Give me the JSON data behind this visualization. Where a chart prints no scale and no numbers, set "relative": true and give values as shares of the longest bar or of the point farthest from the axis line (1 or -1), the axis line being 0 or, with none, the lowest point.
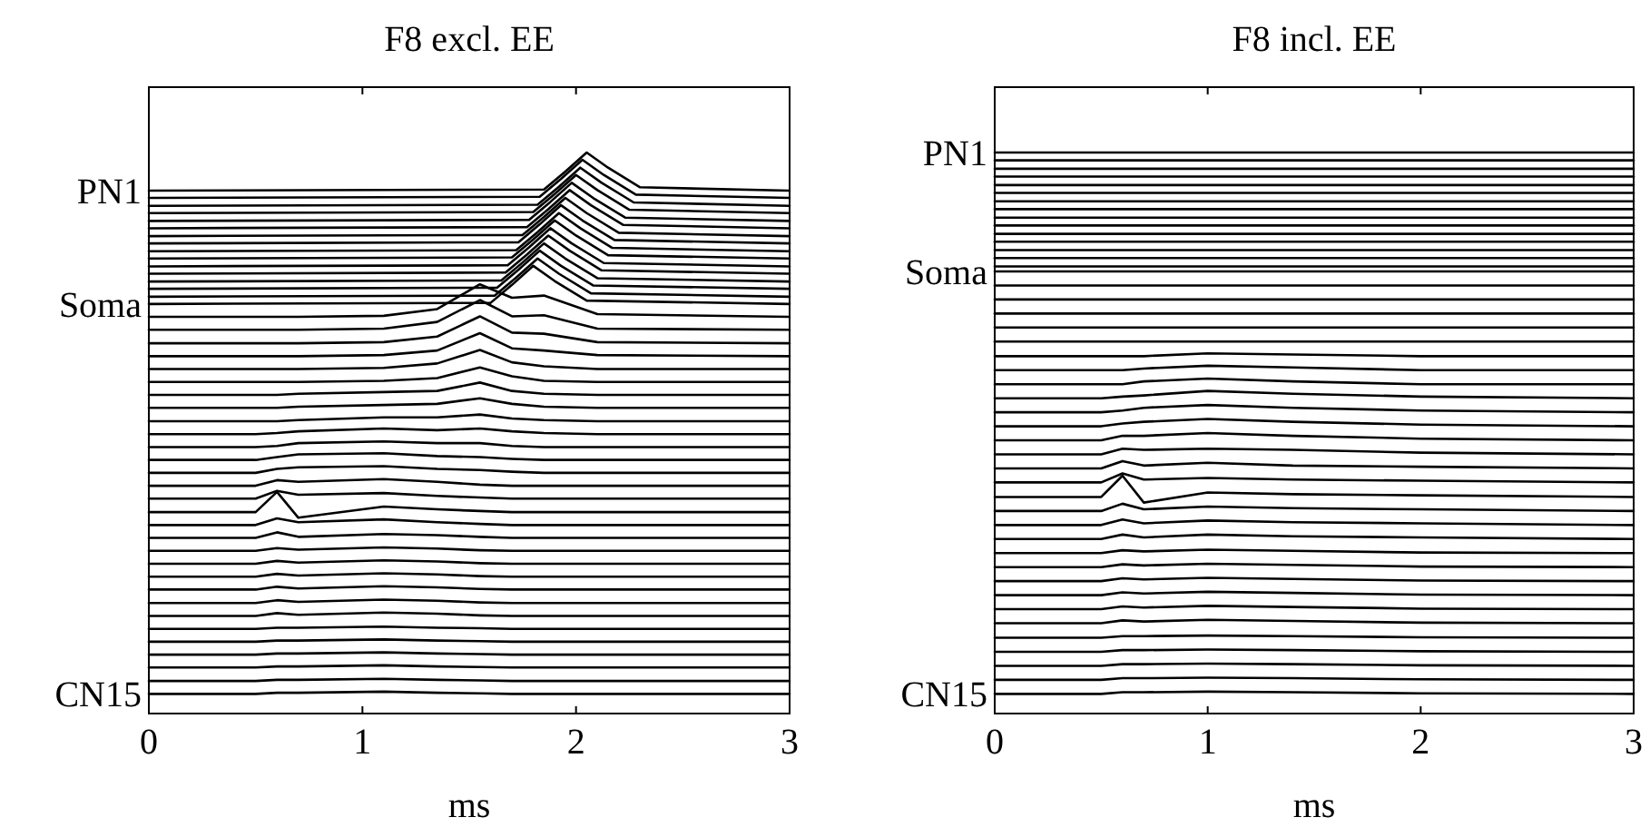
{
  "chart_data": [
    {
      "type": "line",
      "title": "F8 excl. EE",
      "xlabel": "ms",
      "xlim": [
        0,
        3
      ],
      "xticks": [
        0,
        1,
        2,
        3
      ],
      "relative": true,
      "series": [
        {
          "name": "PN1",
          "color": "#000000",
          "x": [
            0,
            1.85,
            1.95,
            2.05,
            2.15,
            2.3,
            3
          ],
          "values": [
            0.932,
            0.934,
            0.966,
            1,
            0.973,
            0.938,
            0.932
          ]
        },
        {
          "color": "#000000",
          "x": [
            0,
            1.83,
            1.93,
            2.03,
            2.13,
            2.28,
            3
          ],
          "values": [
            0.919,
            0.921,
            0.953,
            0.987,
            0.96,
            0.925,
            0.919
          ]
        },
        {
          "color": "#000000",
          "x": [
            0,
            1.82,
            1.92,
            2.02,
            2.12,
            2.27,
            3
          ],
          "values": [
            0.905,
            0.907,
            0.939,
            0.973,
            0.946,
            0.911,
            0.905
          ]
        },
        {
          "color": "#000000",
          "x": [
            0,
            1.8,
            1.9,
            2,
            2.1,
            2.25,
            3
          ],
          "values": [
            0.892,
            0.894,
            0.926,
            0.96,
            0.933,
            0.898,
            0.892
          ]
        },
        {
          "color": "#000000",
          "x": [
            0,
            1.78,
            1.88,
            1.98,
            2.08,
            2.23,
            3
          ],
          "values": [
            0.878,
            0.88,
            0.912,
            0.946,
            0.919,
            0.884,
            0.878
          ]
        },
        {
          "color": "#000000",
          "x": [
            0,
            1.77,
            1.87,
            1.97,
            2.07,
            2.22,
            3
          ],
          "values": [
            0.865,
            0.867,
            0.899,
            0.933,
            0.906,
            0.871,
            0.865
          ]
        },
        {
          "color": "#000000",
          "x": [
            0,
            1.75,
            1.85,
            1.95,
            2.05,
            2.2,
            3
          ],
          "values": [
            0.851,
            0.853,
            0.885,
            0.919,
            0.892,
            0.857,
            0.851
          ]
        },
        {
          "color": "#000000",
          "x": [
            0,
            1.73,
            1.83,
            1.93,
            2.03,
            2.18,
            3
          ],
          "values": [
            0.838,
            0.84,
            0.872,
            0.906,
            0.879,
            0.844,
            0.838
          ]
        },
        {
          "color": "#000000",
          "x": [
            0,
            1.72,
            1.82,
            1.92,
            2.02,
            2.17,
            3
          ],
          "values": [
            0.824,
            0.826,
            0.858,
            0.892,
            0.865,
            0.83,
            0.824
          ]
        },
        {
          "color": "#000000",
          "x": [
            0,
            1.7,
            1.8,
            1.9,
            2,
            2.15,
            3
          ],
          "values": [
            0.811,
            0.813,
            0.845,
            0.879,
            0.852,
            0.817,
            0.811
          ]
        },
        {
          "color": "#000000",
          "x": [
            0,
            1.68,
            1.78,
            1.88,
            1.98,
            2.13,
            3
          ],
          "values": [
            0.797,
            0.799,
            0.831,
            0.865,
            0.838,
            0.803,
            0.797
          ]
        },
        {
          "color": "#000000",
          "x": [
            0,
            1.67,
            1.77,
            1.87,
            1.97,
            2.12,
            3
          ],
          "values": [
            0.784,
            0.786,
            0.818,
            0.852,
            0.825,
            0.79,
            0.784
          ]
        },
        {
          "color": "#000000",
          "x": [
            0,
            1.65,
            1.75,
            1.85,
            1.95,
            2.1,
            3
          ],
          "values": [
            0.77,
            0.772,
            0.804,
            0.838,
            0.811,
            0.776,
            0.77
          ]
        },
        {
          "color": "#000000",
          "x": [
            0,
            1.63,
            1.73,
            1.83,
            1.93,
            2.08,
            3
          ],
          "values": [
            0.757,
            0.759,
            0.791,
            0.825,
            0.798,
            0.763,
            0.757
          ]
        },
        {
          "color": "#000000",
          "x": [
            0,
            1.62,
            1.72,
            1.82,
            1.92,
            2.07,
            3
          ],
          "values": [
            0.743,
            0.745,
            0.777,
            0.811,
            0.784,
            0.749,
            0.743
          ]
        },
        {
          "name": "Soma",
          "color": "#000000",
          "x": [
            0,
            1.6,
            1.7,
            1.8,
            1.9,
            2.05,
            3
          ],
          "values": [
            0.73,
            0.732,
            0.764,
            0.798,
            0.771,
            0.736,
            0.73
          ]
        },
        {
          "color": "#000000",
          "x": [
            0,
            0.5,
            0.6,
            0.7,
            1.1,
            1.35,
            1.55,
            1.7,
            1.85,
            2.1,
            3
          ],
          "values": [
            0.707,
            0.707,
            0.707,
            0.707,
            0.709,
            0.721,
            0.765,
            0.741,
            0.745,
            0.712,
            0.707
          ]
        },
        {
          "color": "#000000",
          "x": [
            0,
            0.5,
            0.6,
            0.7,
            1.1,
            1.35,
            1.55,
            1.7,
            1.85,
            2.1,
            3
          ],
          "values": [
            0.684,
            0.684,
            0.684,
            0.684,
            0.686,
            0.698,
            0.737,
            0.708,
            0.71,
            0.686,
            0.684
          ]
        },
        {
          "color": "#000000",
          "x": [
            0,
            0.5,
            0.6,
            0.7,
            1.1,
            1.35,
            1.55,
            1.7,
            1.85,
            2.1,
            3
          ],
          "values": [
            0.66,
            0.66,
            0.66,
            0.66,
            0.662,
            0.672,
            0.708,
            0.679,
            0.677,
            0.662,
            0.66
          ]
        },
        {
          "color": "#000000",
          "x": [
            0,
            0.5,
            0.6,
            0.7,
            1.1,
            1.35,
            1.55,
            1.7,
            1.85,
            2.1,
            3
          ],
          "values": [
            0.637,
            0.637,
            0.637,
            0.637,
            0.639,
            0.647,
            0.678,
            0.651,
            0.647,
            0.639,
            0.637
          ]
        },
        {
          "color": "#000000",
          "x": [
            0,
            0.5,
            0.6,
            0.7,
            1.1,
            1.35,
            1.55,
            1.7,
            1.85,
            2.1,
            3
          ],
          "values": [
            0.614,
            0.614,
            0.614,
            0.614,
            0.616,
            0.624,
            0.648,
            0.626,
            0.619,
            0.614,
            0.614
          ]
        },
        {
          "color": "#000000",
          "x": [
            0,
            0.5,
            0.6,
            0.7,
            1.1,
            1.35,
            1.55,
            1.7,
            1.85,
            2.1,
            3
          ],
          "values": [
            0.591,
            0.591,
            0.591,
            0.591,
            0.593,
            0.598,
            0.617,
            0.601,
            0.593,
            0.591,
            0.591
          ]
        },
        {
          "color": "#000000",
          "x": [
            0,
            0.5,
            0.6,
            0.7,
            1.1,
            1.35,
            1.55,
            1.7,
            1.85,
            2.1,
            3
          ],
          "values": [
            0.568,
            0.568,
            0.568,
            0.57,
            0.573,
            0.575,
            0.59,
            0.575,
            0.57,
            0.568,
            0.568
          ]
        },
        {
          "color": "#000000",
          "x": [
            0,
            0.5,
            0.6,
            0.7,
            1.1,
            1.35,
            1.55,
            1.7,
            1.85,
            2.1,
            3
          ],
          "values": [
            0.545,
            0.545,
            0.545,
            0.547,
            0.55,
            0.552,
            0.562,
            0.552,
            0.547,
            0.545,
            0.545
          ]
        },
        {
          "color": "#000000",
          "x": [
            0,
            0.5,
            0.6,
            0.7,
            1.1,
            1.35,
            1.55,
            1.7,
            1.85,
            2.1,
            3
          ],
          "values": [
            0.521,
            0.521,
            0.521,
            0.523,
            0.528,
            0.528,
            0.533,
            0.526,
            0.523,
            0.521,
            0.521
          ]
        },
        {
          "color": "#000000",
          "x": [
            0,
            0.5,
            0.6,
            0.7,
            1.1,
            1.35,
            1.55,
            1.7,
            1.85,
            2.1,
            3
          ],
          "values": [
            0.498,
            0.498,
            0.5,
            0.503,
            0.508,
            0.505,
            0.508,
            0.503,
            0.5,
            0.498,
            0.498
          ]
        },
        {
          "color": "#000000",
          "x": [
            0,
            0.5,
            0.6,
            0.7,
            1.1,
            1.35,
            1.55,
            1.7,
            1.85,
            2.1,
            3
          ],
          "values": [
            0.475,
            0.475,
            0.477,
            0.482,
            0.485,
            0.482,
            0.482,
            0.477,
            0.475,
            0.475,
            0.475
          ]
        },
        {
          "color": "#000000",
          "x": [
            0,
            0.5,
            0.6,
            0.7,
            1.1,
            1.35,
            1.55,
            1.7,
            1.85,
            2.1,
            3
          ],
          "values": [
            0.452,
            0.452,
            0.457,
            0.462,
            0.464,
            0.459,
            0.457,
            0.454,
            0.452,
            0.452,
            0.452
          ]
        },
        {
          "color": "#000000",
          "x": [
            0,
            0.5,
            0.6,
            0.7,
            1.1,
            1.35,
            1.55,
            1.7,
            1.85,
            2.1,
            3
          ],
          "values": [
            0.429,
            0.429,
            0.436,
            0.439,
            0.441,
            0.436,
            0.434,
            0.431,
            0.429,
            0.429,
            0.429
          ]
        },
        {
          "color": "#000000",
          "x": [
            0,
            0.5,
            0.6,
            0.7,
            1.1,
            1.35,
            1.55,
            1.7,
            1.85,
            2.1,
            3
          ],
          "values": [
            0.406,
            0.406,
            0.416,
            0.413,
            0.418,
            0.413,
            0.408,
            0.406,
            0.406,
            0.406,
            0.406
          ]
        },
        {
          "color": "#000000",
          "x": [
            0,
            0.5,
            0.6,
            0.7,
            1.1,
            1.35,
            1.55,
            1.7,
            1.85,
            2.1,
            3
          ],
          "values": [
            0.383,
            0.383,
            0.397,
            0.39,
            0.393,
            0.388,
            0.385,
            0.383,
            0.383,
            0.383,
            0.383
          ]
        },
        {
          "color": "#000000",
          "x": [
            0,
            0.5,
            0.6,
            0.7,
            1.1,
            1.35,
            1.55,
            1.7,
            1.85,
            2.1,
            3
          ],
          "values": [
            0.359,
            0.359,
            0.395,
            0.349,
            0.369,
            0.364,
            0.361,
            0.359,
            0.359,
            0.359,
            0.359
          ]
        },
        {
          "color": "#000000",
          "x": [
            0,
            0.5,
            0.6,
            0.7,
            1.1,
            1.35,
            1.55,
            1.7,
            1.85,
            2.1,
            3
          ],
          "values": [
            0.336,
            0.336,
            0.348,
            0.341,
            0.346,
            0.341,
            0.338,
            0.336,
            0.336,
            0.336,
            0.336
          ]
        },
        {
          "color": "#000000",
          "x": [
            0,
            0.5,
            0.6,
            0.7,
            1.1,
            1.35,
            1.55,
            1.7,
            1.85,
            2.1,
            3
          ],
          "values": [
            0.313,
            0.313,
            0.323,
            0.315,
            0.32,
            0.318,
            0.315,
            0.313,
            0.313,
            0.313,
            0.313
          ]
        },
        {
          "color": "#000000",
          "x": [
            0,
            0.5,
            0.6,
            0.7,
            1.1,
            1.35,
            1.55,
            1.7,
            1.85,
            2.1,
            3
          ],
          "values": [
            0.29,
            0.29,
            0.295,
            0.292,
            0.296,
            0.294,
            0.291,
            0.29,
            0.29,
            0.29,
            0.29
          ]
        },
        {
          "color": "#000000",
          "x": [
            0,
            0.5,
            0.6,
            0.7,
            1.1,
            1.35,
            1.55,
            1.7,
            1.85,
            2.1,
            3
          ],
          "values": [
            0.267,
            0.267,
            0.272,
            0.269,
            0.273,
            0.271,
            0.268,
            0.267,
            0.267,
            0.267,
            0.267
          ]
        },
        {
          "color": "#000000",
          "x": [
            0,
            0.5,
            0.6,
            0.7,
            1.1,
            1.35,
            1.55,
            1.7,
            1.85,
            2.1,
            3
          ],
          "values": [
            0.244,
            0.244,
            0.249,
            0.246,
            0.25,
            0.248,
            0.245,
            0.244,
            0.244,
            0.244,
            0.244
          ]
        },
        {
          "color": "#000000",
          "x": [
            0,
            0.5,
            0.6,
            0.7,
            1.1,
            1.35,
            1.55,
            1.7,
            1.85,
            2.1,
            3
          ],
          "values": [
            0.221,
            0.221,
            0.226,
            0.223,
            0.227,
            0.225,
            0.222,
            0.221,
            0.221,
            0.221,
            0.221
          ]
        },
        {
          "color": "#000000",
          "x": [
            0,
            0.5,
            0.6,
            0.7,
            1.1,
            1.35,
            1.55,
            1.7,
            1.85,
            2.1,
            3
          ],
          "values": [
            0.197,
            0.197,
            0.202,
            0.199,
            0.203,
            0.201,
            0.198,
            0.197,
            0.197,
            0.197,
            0.197
          ]
        },
        {
          "color": "#000000",
          "x": [
            0,
            0.5,
            0.6,
            0.7,
            1.1,
            1.35,
            1.55,
            1.7,
            1.85,
            2.1,
            3
          ],
          "values": [
            0.174,
            0.174,
            0.179,
            0.176,
            0.18,
            0.178,
            0.175,
            0.174,
            0.174,
            0.174,
            0.174
          ]
        },
        {
          "color": "#000000",
          "x": [
            0,
            0.5,
            0.6,
            0.7,
            1.1,
            1.35,
            1.55,
            1.7,
            1.85,
            2.1,
            3
          ],
          "values": [
            0.151,
            0.151,
            0.153,
            0.153,
            0.155,
            0.153,
            0.152,
            0.151,
            0.151,
            0.151,
            0.151
          ]
        },
        {
          "color": "#000000",
          "x": [
            0,
            0.5,
            0.6,
            0.7,
            1.1,
            1.35,
            1.55,
            1.7,
            1.85,
            2.1,
            3
          ],
          "values": [
            0.128,
            0.128,
            0.13,
            0.13,
            0.132,
            0.13,
            0.129,
            0.128,
            0.128,
            0.128,
            0.128
          ]
        },
        {
          "color": "#000000",
          "x": [
            0,
            0.5,
            0.6,
            0.7,
            1.1,
            1.35,
            1.55,
            1.7,
            1.85,
            2.1,
            3
          ],
          "values": [
            0.105,
            0.105,
            0.107,
            0.107,
            0.109,
            0.107,
            0.106,
            0.105,
            0.105,
            0.105,
            0.105
          ]
        },
        {
          "color": "#000000",
          "x": [
            0,
            0.5,
            0.6,
            0.7,
            1.1,
            1.35,
            1.55,
            1.7,
            1.85,
            2.1,
            3
          ],
          "values": [
            0.082,
            0.082,
            0.084,
            0.084,
            0.086,
            0.084,
            0.083,
            0.082,
            0.082,
            0.082,
            0.082
          ]
        },
        {
          "color": "#000000",
          "x": [
            0,
            0.5,
            0.6,
            0.7,
            1.1,
            1.35,
            1.55,
            1.7,
            1.85,
            2.1,
            3
          ],
          "values": [
            0.058,
            0.058,
            0.06,
            0.06,
            0.062,
            0.06,
            0.059,
            0.058,
            0.058,
            0.058,
            0.058
          ]
        },
        {
          "name": "CN15",
          "color": "#000000",
          "x": [
            0,
            0.5,
            0.6,
            0.7,
            1.1,
            1.35,
            1.55,
            1.7,
            1.85,
            2.1,
            3
          ],
          "values": [
            0.035,
            0.035,
            0.037,
            0.037,
            0.039,
            0.037,
            0.036,
            0.035,
            0.035,
            0.035,
            0.035
          ]
        }
      ]
    },
    {
      "type": "line",
      "title": "F8 incl. EE",
      "xlabel": "ms",
      "xlim": [
        0,
        3
      ],
      "xticks": [
        0,
        1,
        2,
        3
      ],
      "relative": true,
      "series": [
        {
          "name": "PN1",
          "color": "#000000",
          "x": [
            0,
            3
          ],
          "values": [
            1,
            1
          ]
        },
        {
          "color": "#000000",
          "x": [
            0,
            3
          ],
          "values": [
            0.986,
            0.986
          ]
        },
        {
          "color": "#000000",
          "x": [
            0,
            3
          ],
          "values": [
            0.971,
            0.971
          ]
        },
        {
          "color": "#000000",
          "x": [
            0,
            3
          ],
          "values": [
            0.957,
            0.957
          ]
        },
        {
          "color": "#000000",
          "x": [
            0,
            3
          ],
          "values": [
            0.942,
            0.942
          ]
        },
        {
          "color": "#000000",
          "x": [
            0,
            3
          ],
          "values": [
            0.928,
            0.928
          ]
        },
        {
          "color": "#000000",
          "x": [
            0,
            3
          ],
          "values": [
            0.913,
            0.913
          ]
        },
        {
          "color": "#000000",
          "x": [
            0,
            3
          ],
          "values": [
            0.899,
            0.899
          ]
        },
        {
          "color": "#000000",
          "x": [
            0,
            3
          ],
          "values": [
            0.884,
            0.884
          ]
        },
        {
          "color": "#000000",
          "x": [
            0,
            3
          ],
          "values": [
            0.87,
            0.87
          ]
        },
        {
          "color": "#000000",
          "x": [
            0,
            3
          ],
          "values": [
            0.855,
            0.855
          ]
        },
        {
          "color": "#000000",
          "x": [
            0,
            3
          ],
          "values": [
            0.841,
            0.841
          ]
        },
        {
          "color": "#000000",
          "x": [
            0,
            3
          ],
          "values": [
            0.826,
            0.826
          ]
        },
        {
          "color": "#000000",
          "x": [
            0,
            3
          ],
          "values": [
            0.812,
            0.812
          ]
        },
        {
          "color": "#000000",
          "x": [
            0,
            3
          ],
          "values": [
            0.797,
            0.797
          ]
        },
        {
          "name": "Soma",
          "color": "#000000",
          "x": [
            0,
            3
          ],
          "values": [
            0.788,
            0.788
          ]
        },
        {
          "color": "#000000",
          "x": [
            0,
            3
          ],
          "values": [
            0.763,
            0.763
          ]
        },
        {
          "color": "#000000",
          "x": [
            0,
            3
          ],
          "values": [
            0.738,
            0.738
          ]
        },
        {
          "color": "#000000",
          "x": [
            0,
            3
          ],
          "values": [
            0.713,
            0.713
          ]
        },
        {
          "color": "#000000",
          "x": [
            0,
            3
          ],
          "values": [
            0.688,
            0.688
          ]
        },
        {
          "color": "#000000",
          "x": [
            0,
            3
          ],
          "values": [
            0.663,
            0.663
          ]
        },
        {
          "color": "#000000",
          "x": [
            0,
            0.5,
            0.6,
            0.7,
            1,
            1.4,
            2,
            3
          ],
          "values": [
            0.637,
            0.637,
            0.637,
            0.637,
            0.642,
            0.64,
            0.637,
            0.637
          ]
        },
        {
          "color": "#000000",
          "x": [
            0,
            0.5,
            0.6,
            0.7,
            1,
            1.4,
            2,
            3
          ],
          "values": [
            0.612,
            0.612,
            0.612,
            0.615,
            0.62,
            0.617,
            0.612,
            0.612
          ]
        },
        {
          "color": "#000000",
          "x": [
            0,
            0.5,
            0.6,
            0.7,
            1,
            1.4,
            2,
            3
          ],
          "values": [
            0.587,
            0.587,
            0.587,
            0.592,
            0.597,
            0.592,
            0.587,
            0.587
          ]
        },
        {
          "color": "#000000",
          "x": [
            0,
            0.5,
            0.6,
            0.7,
            1,
            1.4,
            2,
            3
          ],
          "values": [
            0.562,
            0.562,
            0.565,
            0.567,
            0.575,
            0.57,
            0.565,
            0.562
          ]
        },
        {
          "color": "#000000",
          "x": [
            0,
            0.5,
            0.6,
            0.7,
            1,
            1.4,
            2,
            3
          ],
          "values": [
            0.537,
            0.537,
            0.54,
            0.545,
            0.55,
            0.545,
            0.54,
            0.537
          ]
        },
        {
          "color": "#000000",
          "x": [
            0,
            0.5,
            0.6,
            0.7,
            1,
            1.4,
            2,
            3
          ],
          "values": [
            0.512,
            0.512,
            0.517,
            0.52,
            0.525,
            0.52,
            0.515,
            0.512
          ]
        },
        {
          "color": "#000000",
          "x": [
            0,
            0.5,
            0.6,
            0.7,
            1,
            1.4,
            2,
            3
          ],
          "values": [
            0.487,
            0.487,
            0.495,
            0.495,
            0.5,
            0.495,
            0.49,
            0.487
          ]
        },
        {
          "color": "#000000",
          "x": [
            0,
            0.5,
            0.6,
            0.7,
            1,
            1.4,
            2,
            3
          ],
          "values": [
            0.462,
            0.462,
            0.472,
            0.47,
            0.472,
            0.47,
            0.465,
            0.462
          ]
        },
        {
          "color": "#000000",
          "x": [
            0,
            0.5,
            0.6,
            0.7,
            1,
            1.4,
            2,
            3
          ],
          "values": [
            0.437,
            0.437,
            0.45,
            0.442,
            0.447,
            0.442,
            0.44,
            0.437
          ]
        },
        {
          "color": "#000000",
          "x": [
            0,
            0.5,
            0.6,
            0.7,
            1,
            1.4,
            2,
            3
          ],
          "values": [
            0.412,
            0.412,
            0.428,
            0.417,
            0.42,
            0.417,
            0.415,
            0.412
          ]
        },
        {
          "color": "#000000",
          "x": [
            0,
            0.5,
            0.6,
            0.7,
            1,
            1.4,
            2,
            3
          ],
          "values": [
            0.386,
            0.386,
            0.424,
            0.376,
            0.394,
            0.391,
            0.389,
            0.386
          ]
        },
        {
          "color": "#000000",
          "x": [
            0,
            0.5,
            0.6,
            0.7,
            1,
            1.4,
            2,
            3
          ],
          "values": [
            0.361,
            0.361,
            0.374,
            0.364,
            0.369,
            0.366,
            0.364,
            0.361
          ]
        },
        {
          "color": "#000000",
          "x": [
            0,
            0.5,
            0.6,
            0.7,
            1,
            1.4,
            2,
            3
          ],
          "values": [
            0.336,
            0.336,
            0.346,
            0.339,
            0.344,
            0.341,
            0.339,
            0.336
          ]
        },
        {
          "color": "#000000",
          "x": [
            0,
            0.5,
            0.6,
            0.7,
            1,
            1.4,
            2,
            3
          ],
          "values": [
            0.311,
            0.311,
            0.319,
            0.314,
            0.319,
            0.316,
            0.314,
            0.311
          ]
        },
        {
          "color": "#000000",
          "x": [
            0,
            0.5,
            0.6,
            0.7,
            1,
            1.4,
            2,
            3
          ],
          "values": [
            0.286,
            0.286,
            0.291,
            0.289,
            0.292,
            0.29,
            0.287,
            0.286
          ]
        },
        {
          "color": "#000000",
          "x": [
            0,
            0.5,
            0.6,
            0.7,
            1,
            1.4,
            2,
            3
          ],
          "values": [
            0.261,
            0.261,
            0.266,
            0.264,
            0.267,
            0.265,
            0.262,
            0.261
          ]
        },
        {
          "color": "#000000",
          "x": [
            0,
            0.5,
            0.6,
            0.7,
            1,
            1.4,
            2,
            3
          ],
          "values": [
            0.236,
            0.236,
            0.241,
            0.239,
            0.242,
            0.24,
            0.237,
            0.236
          ]
        },
        {
          "color": "#000000",
          "x": [
            0,
            0.5,
            0.6,
            0.7,
            1,
            1.4,
            2,
            3
          ],
          "values": [
            0.211,
            0.211,
            0.216,
            0.214,
            0.217,
            0.215,
            0.212,
            0.211
          ]
        },
        {
          "color": "#000000",
          "x": [
            0,
            0.5,
            0.6,
            0.7,
            1,
            1.4,
            2,
            3
          ],
          "values": [
            0.186,
            0.186,
            0.191,
            0.189,
            0.192,
            0.19,
            0.187,
            0.186
          ]
        },
        {
          "color": "#000000",
          "x": [
            0,
            0.5,
            0.6,
            0.7,
            1,
            1.4,
            2,
            3
          ],
          "values": [
            0.161,
            0.161,
            0.166,
            0.164,
            0.167,
            0.165,
            0.162,
            0.161
          ]
        },
        {
          "color": "#000000",
          "x": [
            0,
            0.5,
            0.6,
            0.7,
            1,
            1.4,
            2,
            3
          ],
          "values": [
            0.135,
            0.135,
            0.138,
            0.138,
            0.139,
            0.138,
            0.136,
            0.135
          ]
        },
        {
          "color": "#000000",
          "x": [
            0,
            0.5,
            0.6,
            0.7,
            1,
            1.4,
            2,
            3
          ],
          "values": [
            0.11,
            0.11,
            0.113,
            0.113,
            0.114,
            0.113,
            0.111,
            0.11
          ]
        },
        {
          "color": "#000000",
          "x": [
            0,
            0.5,
            0.6,
            0.7,
            1,
            1.4,
            2,
            3
          ],
          "values": [
            0.085,
            0.085,
            0.088,
            0.088,
            0.089,
            0.088,
            0.086,
            0.085
          ]
        },
        {
          "color": "#000000",
          "x": [
            0,
            0.5,
            0.6,
            0.7,
            1,
            1.4,
            2,
            3
          ],
          "values": [
            0.06,
            0.06,
            0.063,
            0.063,
            0.064,
            0.063,
            0.061,
            0.06
          ]
        },
        {
          "name": "CN15",
          "color": "#000000",
          "x": [
            0,
            0.5,
            0.6,
            0.7,
            1,
            1.4,
            2,
            3
          ],
          "values": [
            0.035,
            0.035,
            0.038,
            0.038,
            0.039,
            0.038,
            0.036,
            0.035
          ]
        }
      ]
    }
  ]
}
